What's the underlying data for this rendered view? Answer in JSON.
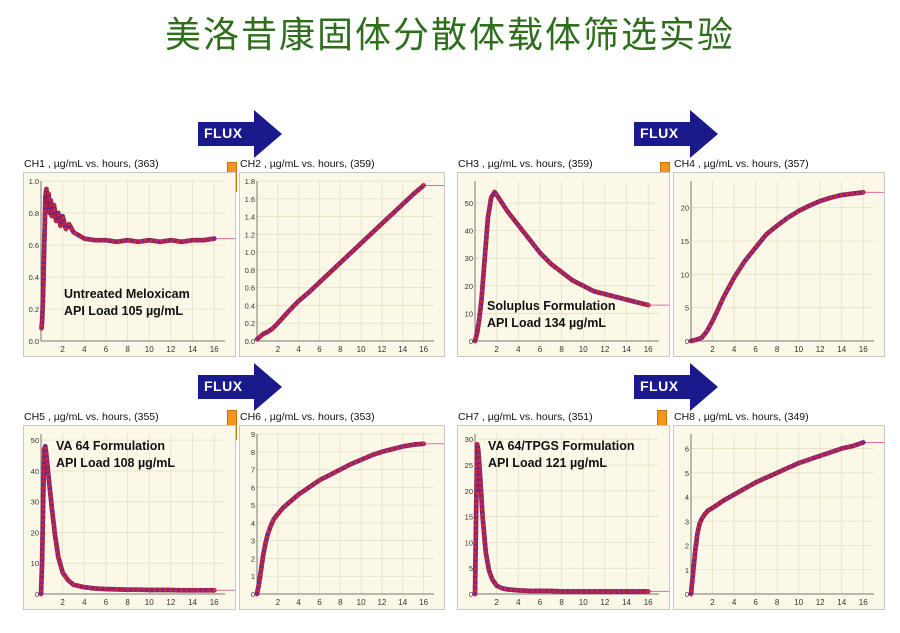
{
  "page": {
    "title": "美洛昔康固体分散体载体筛选实验",
    "flux_label": "FLUX"
  },
  "colors": {
    "title": "#2f6e1c",
    "flux": "#1a1a8c",
    "marker": "#f7941d",
    "series_a": "#d42a4a",
    "series_b": "#6a2ab0",
    "plot_bg": "#fbf8e8"
  },
  "chart_data": [
    {
      "id": "ch1",
      "type": "scatter",
      "title": "CH1 , µg/mL vs. hours, (363)",
      "xlim": [
        0,
        17
      ],
      "ylim": [
        0,
        1.0
      ],
      "xticks": [
        2,
        4,
        6,
        8,
        10,
        12,
        14,
        16
      ],
      "yticks": [
        0.0,
        0.2,
        0.4,
        0.6,
        0.8,
        1.0
      ],
      "ydecimals": 1,
      "end_y": 0.64,
      "annotation": [
        "Untreated Meloxicam",
        "API Load 105 µg/mL"
      ],
      "x": [
        0.05,
        0.1,
        0.15,
        0.2,
        0.25,
        0.3,
        0.35,
        0.4,
        0.5,
        0.6,
        0.7,
        0.8,
        0.9,
        1.0,
        1.2,
        1.4,
        1.6,
        1.8,
        2.0,
        2.3,
        2.6,
        3.0,
        3.5,
        4,
        5,
        6,
        7,
        8,
        9,
        10,
        11,
        12,
        13,
        14,
        15,
        16
      ],
      "y": [
        0.08,
        0.12,
        0.2,
        0.3,
        0.45,
        0.6,
        0.72,
        0.9,
        0.95,
        0.85,
        0.92,
        0.8,
        0.88,
        0.78,
        0.85,
        0.75,
        0.8,
        0.72,
        0.78,
        0.7,
        0.73,
        0.68,
        0.66,
        0.64,
        0.63,
        0.63,
        0.62,
        0.63,
        0.62,
        0.63,
        0.62,
        0.63,
        0.62,
        0.63,
        0.63,
        0.64
      ]
    },
    {
      "id": "ch2",
      "type": "scatter",
      "title": "CH2 , µg/mL vs. hours, (359)",
      "xlim": [
        0,
        17
      ],
      "ylim": [
        0,
        1.8
      ],
      "xticks": [
        2,
        4,
        6,
        8,
        10,
        12,
        14,
        16
      ],
      "yticks": [
        0.0,
        0.2,
        0.4,
        0.6,
        0.8,
        1.0,
        1.2,
        1.4,
        1.6,
        1.8
      ],
      "ydecimals": 1,
      "end_y": 1.75,
      "annotation": [],
      "x": [
        0,
        0.3,
        0.6,
        1,
        1.5,
        2,
        3,
        4,
        5,
        6,
        7,
        8,
        9,
        10,
        11,
        12,
        13,
        14,
        15,
        16
      ],
      "y": [
        0.02,
        0.05,
        0.08,
        0.1,
        0.14,
        0.2,
        0.33,
        0.45,
        0.55,
        0.66,
        0.77,
        0.88,
        0.99,
        1.1,
        1.21,
        1.32,
        1.43,
        1.54,
        1.65,
        1.75
      ]
    },
    {
      "id": "ch3",
      "type": "scatter",
      "title": "CH3 , µg/mL vs. hours, (359)",
      "xlim": [
        0,
        17
      ],
      "ylim": [
        0,
        58
      ],
      "xticks": [
        2,
        4,
        6,
        8,
        10,
        12,
        14,
        16
      ],
      "yticks": [
        0,
        10,
        20,
        30,
        40,
        50
      ],
      "ydecimals": 0,
      "end_y": 13,
      "annotation": [
        "Soluplus Formulation",
        "API Load 134 µg/mL"
      ],
      "x": [
        0,
        0.2,
        0.4,
        0.6,
        0.8,
        1,
        1.2,
        1.5,
        1.8,
        2,
        2.5,
        3,
        4,
        5,
        6,
        7,
        8,
        9,
        10,
        11,
        12,
        13,
        14,
        15,
        16
      ],
      "y": [
        0,
        3,
        8,
        15,
        25,
        35,
        45,
        52,
        54,
        53,
        50,
        47,
        42,
        37,
        32,
        28,
        25,
        22,
        20,
        18,
        17,
        16,
        15,
        14,
        13
      ]
    },
    {
      "id": "ch4",
      "type": "scatter",
      "title": "CH4 , µg/mL vs. hours, (357)",
      "xlim": [
        0,
        17
      ],
      "ylim": [
        0,
        24
      ],
      "xticks": [
        2,
        4,
        6,
        8,
        10,
        12,
        14,
        16
      ],
      "yticks": [
        0,
        5,
        10,
        15,
        20
      ],
      "ydecimals": 0,
      "end_y": 22.3,
      "annotation": [],
      "x": [
        0,
        0.5,
        1,
        1.5,
        2,
        2.5,
        3,
        3.5,
        4,
        5,
        6,
        7,
        8,
        9,
        10,
        11,
        12,
        13,
        14,
        15,
        16
      ],
      "y": [
        0,
        0.2,
        0.5,
        1.5,
        3,
        4.7,
        6.5,
        8,
        9.5,
        12,
        14,
        16,
        17.3,
        18.5,
        19.5,
        20.3,
        21,
        21.5,
        21.9,
        22.1,
        22.3
      ]
    },
    {
      "id": "ch5",
      "type": "scatter",
      "title": "CH5 , µg/mL vs. hours, (355)",
      "xlim": [
        0,
        17
      ],
      "ylim": [
        0,
        52
      ],
      "xticks": [
        2,
        4,
        6,
        8,
        10,
        12,
        14,
        16
      ],
      "yticks": [
        0,
        10,
        20,
        30,
        40,
        50
      ],
      "ydecimals": 0,
      "end_y": 1.2,
      "annotation": [
        "VA 64 Formulation",
        "API Load 108 µg/mL"
      ],
      "x": [
        0,
        0.1,
        0.2,
        0.3,
        0.4,
        0.5,
        0.7,
        1,
        1.3,
        1.6,
        2,
        2.5,
        3,
        4,
        5,
        6,
        7,
        8,
        9,
        10,
        11,
        12,
        13,
        14,
        15,
        16
      ],
      "y": [
        0,
        10,
        30,
        47,
        48,
        45,
        38,
        28,
        19,
        12,
        7,
        4.5,
        3,
        2.2,
        1.8,
        1.6,
        1.5,
        1.4,
        1.4,
        1.3,
        1.3,
        1.3,
        1.2,
        1.2,
        1.2,
        1.2
      ]
    },
    {
      "id": "ch6",
      "type": "scatter",
      "title": "CH6 , µg/mL vs. hours, (353)",
      "xlim": [
        0,
        17
      ],
      "ylim": [
        0,
        9
      ],
      "xticks": [
        2,
        4,
        6,
        8,
        10,
        12,
        14,
        16
      ],
      "yticks": [
        0,
        1,
        2,
        3,
        4,
        5,
        6,
        7,
        8,
        9
      ],
      "ydecimals": 0,
      "end_y": 8.45,
      "annotation": [],
      "x": [
        0,
        0.2,
        0.4,
        0.6,
        0.8,
        1,
        1.3,
        1.6,
        2,
        2.5,
        3,
        4,
        5,
        6,
        7,
        8,
        9,
        10,
        11,
        12,
        13,
        14,
        15,
        16
      ],
      "y": [
        0,
        0.6,
        1.4,
        2.2,
        2.8,
        3.3,
        3.8,
        4.2,
        4.5,
        4.85,
        5.1,
        5.6,
        6.0,
        6.4,
        6.7,
        7.0,
        7.3,
        7.55,
        7.8,
        8.0,
        8.15,
        8.3,
        8.4,
        8.45
      ]
    },
    {
      "id": "ch7",
      "type": "scatter",
      "title": "CH7 , µg/mL vs. hours, (351)",
      "xlim": [
        0,
        17
      ],
      "ylim": [
        0,
        31
      ],
      "xticks": [
        2,
        4,
        6,
        8,
        10,
        12,
        14,
        16
      ],
      "yticks": [
        0,
        5,
        10,
        15,
        20,
        25,
        30
      ],
      "ydecimals": 0,
      "end_y": 0.5,
      "annotation": [
        "VA 64/TPGS Formulation",
        "API Load 121 µg/mL"
      ],
      "x": [
        0,
        0.1,
        0.2,
        0.3,
        0.5,
        0.7,
        1,
        1.3,
        1.6,
        2,
        2.5,
        3,
        4,
        5,
        6,
        7,
        8,
        9,
        10,
        11,
        12,
        13,
        14,
        15,
        16
      ],
      "y": [
        0,
        15,
        29,
        28,
        22,
        15,
        8,
        4.5,
        2.8,
        1.6,
        1.1,
        0.9,
        0.7,
        0.6,
        0.6,
        0.6,
        0.5,
        0.5,
        0.5,
        0.5,
        0.5,
        0.5,
        0.5,
        0.5,
        0.5
      ]
    },
    {
      "id": "ch8",
      "type": "scatter",
      "title": "CH8 , µg/mL vs. hours, (349)",
      "xlim": [
        0,
        17
      ],
      "ylim": [
        0,
        6.6
      ],
      "xticks": [
        2,
        4,
        6,
        8,
        10,
        12,
        14,
        16
      ],
      "yticks": [
        0,
        1,
        2,
        3,
        4,
        5,
        6
      ],
      "ydecimals": 0,
      "end_y": 6.25,
      "annotation": [],
      "x": [
        0,
        0.2,
        0.4,
        0.6,
        0.8,
        1,
        1.3,
        1.6,
        2,
        2.5,
        3,
        4,
        5,
        6,
        7,
        8,
        9,
        10,
        11,
        12,
        13,
        14,
        15,
        16
      ],
      "y": [
        0,
        0.9,
        1.8,
        2.5,
        2.9,
        3.1,
        3.3,
        3.45,
        3.55,
        3.7,
        3.85,
        4.1,
        4.35,
        4.6,
        4.8,
        5.0,
        5.2,
        5.4,
        5.55,
        5.7,
        5.85,
        6.0,
        6.1,
        6.25
      ]
    }
  ]
}
